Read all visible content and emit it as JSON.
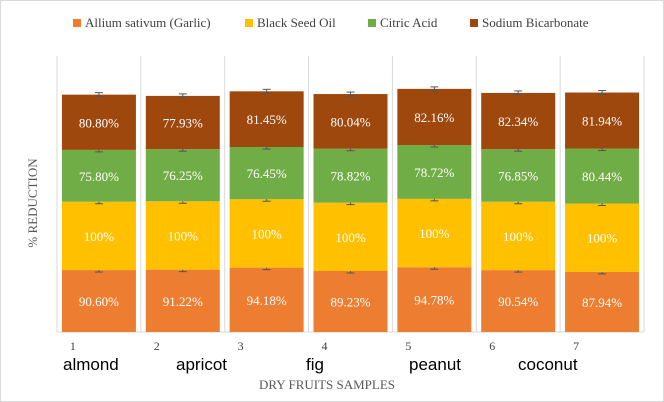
{
  "chart_data": {
    "type": "bar",
    "stacked": true,
    "categories": [
      "1",
      "2",
      "3",
      "4",
      "5",
      "6",
      "7"
    ],
    "sample_names": [
      "almond",
      "apricot",
      "fig",
      "peanut",
      "coconut"
    ],
    "xlabel": "DRY FRUITS SAMPLES",
    "ylabel": "% REDUCTION",
    "grid": "vertical separators",
    "legend_position": "top",
    "series": [
      {
        "name": "Allium sativum (Garlic)",
        "color": "#ed7d31",
        "values": [
          90.6,
          91.22,
          94.18,
          89.23,
          94.78,
          90.54,
          87.94
        ],
        "labels": [
          "90.60%",
          "91.22%",
          "94.18%",
          "89.23%",
          "94.78%",
          "90.54%",
          "87.94%"
        ]
      },
      {
        "name": "Black Seed Oil",
        "color": "#ffc000",
        "values": [
          100,
          100,
          100,
          100,
          100,
          100,
          100
        ],
        "labels": [
          "100%",
          "100%",
          "100%",
          "100%",
          "100%",
          "100%",
          "100%"
        ]
      },
      {
        "name": "Citric Acid",
        "color": "#70ad47",
        "values": [
          75.8,
          76.25,
          76.45,
          78.82,
          78.72,
          76.85,
          80.44
        ],
        "labels": [
          "75.80%",
          "76.25%",
          "76.45%",
          "78.82%",
          "78.72%",
          "76.85%",
          "80.44%"
        ]
      },
      {
        "name": "Sodium Bicarbonate",
        "color": "#9e480e",
        "values": [
          80.8,
          77.93,
          81.45,
          80.04,
          82.16,
          82.34,
          81.94
        ],
        "labels": [
          "80.80%",
          "77.93%",
          "81.45%",
          "80.04%",
          "82.16%",
          "82.34%",
          "81.94%"
        ]
      }
    ]
  }
}
